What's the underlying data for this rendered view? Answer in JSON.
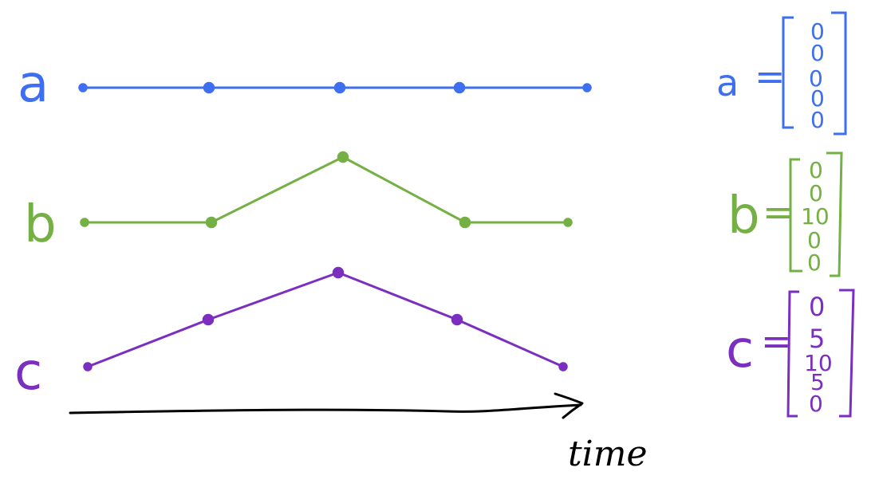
{
  "colors": {
    "a": "#3d6ff0",
    "b": "#74b043",
    "c": "#7a2fc0",
    "axis": "#000000"
  },
  "rows": [
    {
      "label": "a",
      "color_key": "a",
      "values": [
        0,
        0,
        0,
        0,
        0
      ]
    },
    {
      "label": "b",
      "color_key": "b",
      "values": [
        0,
        0,
        10,
        0,
        0
      ]
    },
    {
      "label": "c",
      "color_key": "c",
      "values": [
        0,
        5,
        10,
        5,
        0
      ]
    }
  ],
  "axis": {
    "label": "time"
  },
  "vectors": [
    {
      "name": "a",
      "eq": "=",
      "entries": [
        "0",
        "0",
        "0",
        "0",
        "0"
      ]
    },
    {
      "name": "b",
      "eq": "=",
      "entries": [
        "0",
        "0",
        "10",
        "0",
        "0"
      ]
    },
    {
      "name": "c",
      "eq": "=",
      "entries": [
        "0",
        "5",
        "10",
        "5",
        "0"
      ]
    }
  ]
}
